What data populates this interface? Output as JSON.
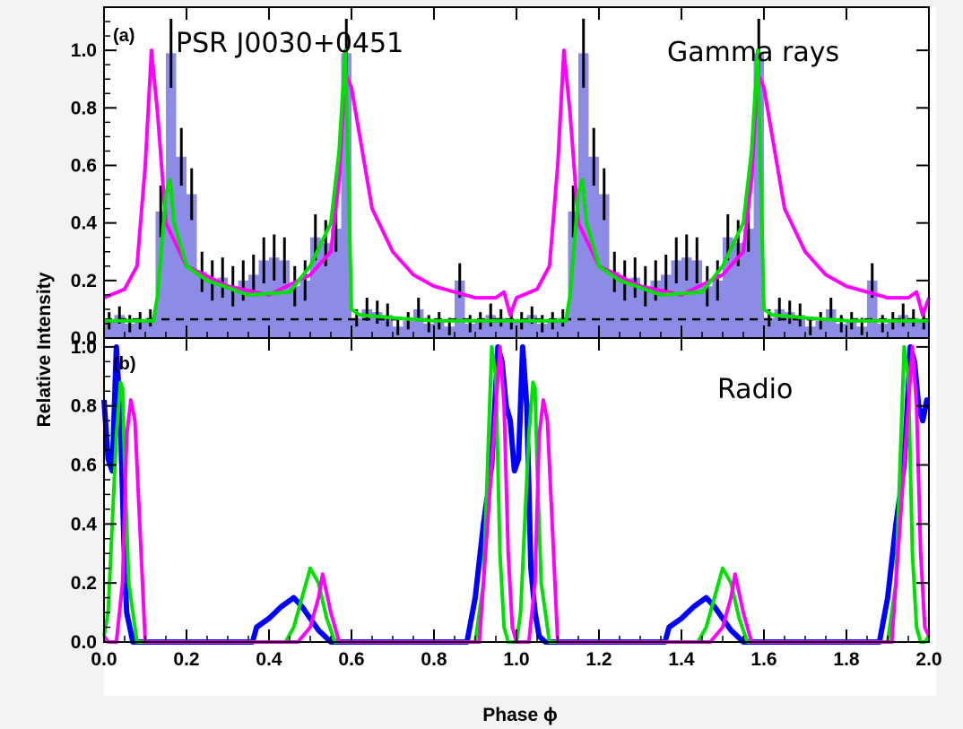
{
  "chart_data": [
    {
      "panel": "(a)",
      "type": "line",
      "annotations": [
        "PSR J0030+0451",
        "Gamma rays"
      ],
      "ylabel": "Relative Intensity",
      "xlim": [
        0,
        2.0
      ],
      "ylim": [
        0,
        1.15
      ],
      "xticks": [
        "0.0",
        "0.2",
        "0.4",
        "0.6",
        "0.8",
        "1.0",
        "1.2",
        "1.4",
        "1.6",
        "1.8",
        "2.0"
      ],
      "yticks": [
        "0.0",
        "0.2",
        "0.4",
        "0.6",
        "0.8",
        "1.0"
      ],
      "histogram": {
        "bin_width": 0.025,
        "values": [
          0.06,
          0.08,
          0.05,
          0.06,
          0.07,
          0.44,
          0.99,
          0.63,
          0.5,
          0.23,
          0.2,
          0.21,
          0.18,
          0.2,
          0.22,
          0.27,
          0.28,
          0.27,
          0.18,
          0.2,
          0.35,
          0.33,
          0.38,
          0.99,
          0.07,
          0.1,
          0.09,
          0.08,
          0.04,
          0.06,
          0.1,
          0.05,
          0.06,
          0.04,
          0.2,
          0.05,
          0.06,
          0.08,
          0.07,
          0.06,
          0.06,
          0.08,
          0.05,
          0.06,
          0.07,
          0.44,
          0.99,
          0.63,
          0.5,
          0.23,
          0.2,
          0.21,
          0.18,
          0.2,
          0.22,
          0.27,
          0.28,
          0.27,
          0.18,
          0.2,
          0.35,
          0.33,
          0.38,
          0.99,
          0.07,
          0.1,
          0.09,
          0.08,
          0.04,
          0.06,
          0.1,
          0.05,
          0.06,
          0.04,
          0.2,
          0.05,
          0.06,
          0.08,
          0.07,
          0.06
        ],
        "errors": [
          0.03,
          0.03,
          0.03,
          0.03,
          0.03,
          0.09,
          0.12,
          0.1,
          0.09,
          0.07,
          0.07,
          0.07,
          0.07,
          0.07,
          0.07,
          0.08,
          0.08,
          0.08,
          0.07,
          0.07,
          0.08,
          0.08,
          0.08,
          0.12,
          0.03,
          0.04,
          0.04,
          0.04,
          0.03,
          0.03,
          0.04,
          0.03,
          0.03,
          0.03,
          0.06,
          0.03,
          0.03,
          0.04,
          0.03,
          0.03,
          0.03,
          0.03,
          0.03,
          0.03,
          0.03,
          0.09,
          0.12,
          0.1,
          0.09,
          0.07,
          0.07,
          0.07,
          0.07,
          0.07,
          0.07,
          0.08,
          0.08,
          0.08,
          0.07,
          0.07,
          0.08,
          0.08,
          0.08,
          0.12,
          0.03,
          0.04,
          0.04,
          0.04,
          0.03,
          0.03,
          0.04,
          0.03,
          0.03,
          0.03,
          0.06,
          0.03,
          0.03,
          0.04,
          0.03,
          0.03
        ]
      },
      "background_level": 0.065,
      "series": [
        {
          "color": "#ff00ff",
          "x": [
            0.0,
            0.05,
            0.08,
            0.1,
            0.115,
            0.13,
            0.15,
            0.2,
            0.3,
            0.4,
            0.5,
            0.55,
            0.57,
            0.585,
            0.6,
            0.65,
            0.7,
            0.75,
            0.8,
            0.9,
            0.95,
            0.97,
            0.985,
            1.0,
            1.05,
            1.08,
            1.1,
            1.115,
            1.13,
            1.15,
            1.2,
            1.3,
            1.4,
            1.5,
            1.55,
            1.57,
            1.585,
            1.6,
            1.65,
            1.7,
            1.75,
            1.8,
            1.9,
            1.95,
            1.97,
            1.985,
            2.0
          ],
          "y": [
            0.14,
            0.17,
            0.25,
            0.6,
            1.0,
            0.78,
            0.4,
            0.25,
            0.18,
            0.15,
            0.22,
            0.3,
            0.55,
            0.92,
            0.87,
            0.45,
            0.3,
            0.22,
            0.18,
            0.14,
            0.14,
            0.16,
            0.08,
            0.14,
            0.17,
            0.25,
            0.6,
            1.0,
            0.78,
            0.4,
            0.25,
            0.18,
            0.15,
            0.22,
            0.3,
            0.55,
            0.92,
            0.87,
            0.45,
            0.3,
            0.22,
            0.18,
            0.14,
            0.14,
            0.16,
            0.08,
            0.14
          ]
        },
        {
          "color": "#00e000",
          "x": [
            0.0,
            0.12,
            0.13,
            0.15,
            0.16,
            0.17,
            0.2,
            0.25,
            0.35,
            0.45,
            0.5,
            0.55,
            0.57,
            0.585,
            0.6,
            0.62,
            0.7,
            0.8,
            0.9,
            1.0,
            1.12,
            1.13,
            1.15,
            1.16,
            1.17,
            1.2,
            1.25,
            1.35,
            1.45,
            1.5,
            1.55,
            1.57,
            1.585,
            1.6,
            1.62,
            1.7,
            1.8,
            1.9,
            2.0
          ],
          "y": [
            0.06,
            0.06,
            0.15,
            0.5,
            0.55,
            0.4,
            0.25,
            0.2,
            0.15,
            0.16,
            0.25,
            0.4,
            0.65,
            1.0,
            0.1,
            0.08,
            0.07,
            0.06,
            0.06,
            0.06,
            0.06,
            0.15,
            0.5,
            0.55,
            0.4,
            0.25,
            0.2,
            0.15,
            0.16,
            0.25,
            0.4,
            0.65,
            1.0,
            0.1,
            0.08,
            0.07,
            0.06,
            0.06,
            0.06
          ]
        }
      ]
    },
    {
      "panel": "(b)",
      "type": "line",
      "annotations": [
        "Radio"
      ],
      "xlabel": "Phase ϕ",
      "xlim": [
        0,
        2.0
      ],
      "ylim": [
        0,
        1.03
      ],
      "xticks": [
        "0.0",
        "0.2",
        "0.4",
        "0.6",
        "0.8",
        "1.0",
        "1.2",
        "1.4",
        "1.6",
        "1.8",
        "2.0"
      ],
      "yticks": [
        "0.0",
        "0.2",
        "0.4",
        "0.6",
        "0.8",
        "1.0"
      ],
      "series": [
        {
          "color": "#0000ff",
          "x": [
            0.0,
            0.01,
            0.02,
            0.03,
            0.04,
            0.05,
            0.055,
            0.07,
            0.1,
            0.36,
            0.37,
            0.4,
            0.43,
            0.46,
            0.48,
            0.5,
            0.52,
            0.55,
            0.58,
            0.88,
            0.9,
            0.92,
            0.94,
            0.955,
            0.965,
            0.975,
            0.985,
            0.995,
            1.005,
            1.015,
            1.025,
            1.035,
            1.045,
            1.055,
            1.07,
            1.1,
            1.36,
            1.37,
            1.4,
            1.43,
            1.46,
            1.48,
            1.5,
            1.52,
            1.55,
            1.58,
            1.88,
            1.9,
            1.92,
            1.94,
            1.955,
            1.965,
            1.975,
            1.985,
            1.995,
            2.0
          ],
          "y": [
            0.82,
            0.62,
            0.58,
            1.0,
            0.75,
            0.25,
            0.1,
            0.0,
            0.0,
            0.0,
            0.05,
            0.08,
            0.12,
            0.15,
            0.12,
            0.08,
            0.04,
            0.0,
            0.0,
            0.0,
            0.15,
            0.4,
            0.6,
            1.0,
            0.95,
            0.8,
            0.75,
            0.58,
            0.62,
            1.0,
            0.8,
            0.25,
            0.1,
            0.02,
            0.0,
            0.0,
            0.0,
            0.05,
            0.08,
            0.12,
            0.15,
            0.12,
            0.08,
            0.04,
            0.0,
            0.0,
            0.0,
            0.15,
            0.4,
            0.6,
            1.0,
            0.95,
            0.8,
            0.75,
            0.82,
            0.82
          ]
        },
        {
          "color": "#00e000",
          "x": [
            0.0,
            0.01,
            0.02,
            0.03,
            0.04,
            0.045,
            0.05,
            0.06,
            0.08,
            0.44,
            0.46,
            0.48,
            0.5,
            0.52,
            0.54,
            0.56,
            0.9,
            0.92,
            0.93,
            0.94,
            0.95,
            0.96,
            0.97,
            0.98,
            0.99,
            1.0,
            1.01,
            1.02,
            1.03,
            1.04,
            1.045,
            1.05,
            1.06,
            1.08,
            1.44,
            1.46,
            1.48,
            1.5,
            1.52,
            1.54,
            1.56,
            1.9,
            1.92,
            1.93,
            1.94,
            1.95,
            1.96,
            1.97,
            1.98,
            1.99,
            2.0
          ],
          "y": [
            0.02,
            0.1,
            0.4,
            0.7,
            0.88,
            0.86,
            0.6,
            0.2,
            0.0,
            0.0,
            0.05,
            0.15,
            0.25,
            0.2,
            0.08,
            0.0,
            0.0,
            0.2,
            0.6,
            1.0,
            0.9,
            0.3,
            0.05,
            0.0,
            0.0,
            0.0,
            0.1,
            0.4,
            0.7,
            0.88,
            0.86,
            0.6,
            0.2,
            0.0,
            0.0,
            0.05,
            0.15,
            0.25,
            0.2,
            0.08,
            0.0,
            0.0,
            0.2,
            0.6,
            1.0,
            0.9,
            0.3,
            0.05,
            0.0,
            0.0,
            0.02
          ]
        },
        {
          "color": "#ff00ff",
          "x": [
            0.0,
            0.01,
            0.03,
            0.045,
            0.055,
            0.065,
            0.075,
            0.09,
            0.1,
            0.47,
            0.5,
            0.52,
            0.53,
            0.55,
            0.57,
            0.91,
            0.93,
            0.95,
            0.96,
            0.97,
            0.98,
            0.99,
            1.0,
            1.03,
            1.045,
            1.055,
            1.065,
            1.075,
            1.09,
            1.1,
            1.47,
            1.5,
            1.52,
            1.53,
            1.55,
            1.57,
            1.91,
            1.93,
            1.95,
            1.96,
            1.97,
            1.98,
            1.99,
            2.0
          ],
          "y": [
            0.02,
            0.0,
            0.0,
            0.2,
            0.7,
            0.82,
            0.75,
            0.3,
            0.0,
            0.0,
            0.05,
            0.15,
            0.23,
            0.1,
            0.0,
            0.0,
            0.4,
            0.8,
            1.0,
            0.8,
            0.3,
            0.05,
            0.0,
            0.0,
            0.2,
            0.7,
            0.82,
            0.75,
            0.3,
            0.0,
            0.0,
            0.05,
            0.15,
            0.23,
            0.1,
            0.0,
            0.0,
            0.4,
            0.8,
            1.0,
            0.8,
            0.3,
            0.05,
            0.02
          ]
        }
      ]
    }
  ]
}
